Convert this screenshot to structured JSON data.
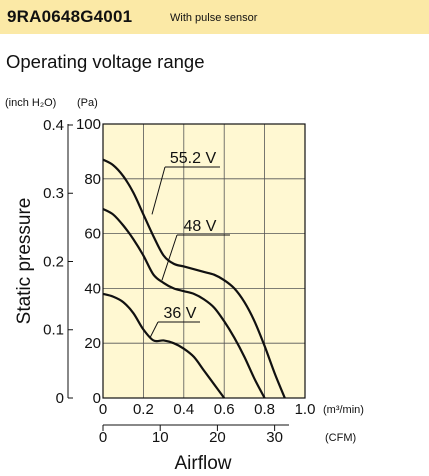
{
  "header": {
    "model": "9RA0648G4001",
    "note": "With pulse sensor",
    "bg_color": "#fbe9a6"
  },
  "section_title": "Operating voltage range",
  "chart_data": {
    "type": "line",
    "xlabel": "Airflow",
    "ylabel": "Static pressure",
    "grid": true,
    "x_unit_primary": "(m³/min)",
    "x_unit_secondary": "(CFM)",
    "y_unit_primary": "(Pa)",
    "y_unit_secondary": "(inch H₂O)",
    "xlim": [
      0,
      1.0
    ],
    "ylim": [
      0,
      100
    ],
    "x_ticks": [
      "0",
      "0.2",
      "0.4",
      "0.6",
      "0.8",
      "1.0"
    ],
    "x_ticks_secondary": [
      "0",
      "10",
      "20",
      "30"
    ],
    "x_ticks_secondary_values": [
      0,
      10,
      20,
      30
    ],
    "cfm_per_m3min": 35.31,
    "y_ticks": [
      "0",
      "20",
      "40",
      "60",
      "80",
      "100"
    ],
    "y_ticks_secondary": [
      "0",
      "0.1",
      "0.2",
      "0.3",
      "0.4"
    ],
    "y_ticks_secondary_values": [
      0,
      0.1,
      0.2,
      0.3,
      0.4
    ],
    "pa_per_inh2o": 249.09,
    "series": [
      {
        "name": "55.2 V",
        "x": [
          0,
          0.05,
          0.1,
          0.15,
          0.2,
          0.25,
          0.3,
          0.35,
          0.4,
          0.45,
          0.5,
          0.55,
          0.6,
          0.65,
          0.7,
          0.75,
          0.8,
          0.85,
          0.9
        ],
        "y": [
          87,
          85,
          81,
          75,
          67,
          59,
          52,
          49,
          48,
          47,
          46,
          45,
          43,
          40,
          35,
          28,
          19,
          9,
          0
        ]
      },
      {
        "name": "48 V",
        "x": [
          0,
          0.05,
          0.1,
          0.15,
          0.2,
          0.25,
          0.3,
          0.35,
          0.4,
          0.45,
          0.5,
          0.55,
          0.6,
          0.65,
          0.7,
          0.75,
          0.8
        ],
        "y": [
          69,
          67,
          63,
          58,
          52,
          45,
          42,
          40,
          39,
          38,
          36,
          33,
          28,
          22,
          15,
          7,
          0
        ]
      },
      {
        "name": "36 V",
        "x": [
          0,
          0.05,
          0.1,
          0.15,
          0.2,
          0.25,
          0.3,
          0.35,
          0.4,
          0.45,
          0.5,
          0.55,
          0.6
        ],
        "y": [
          38,
          37,
          35,
          31,
          25,
          21,
          21,
          20,
          18,
          15,
          10,
          5,
          0
        ]
      }
    ],
    "labels": [
      "55.2 V",
      "48 V",
      "36 V"
    ]
  }
}
